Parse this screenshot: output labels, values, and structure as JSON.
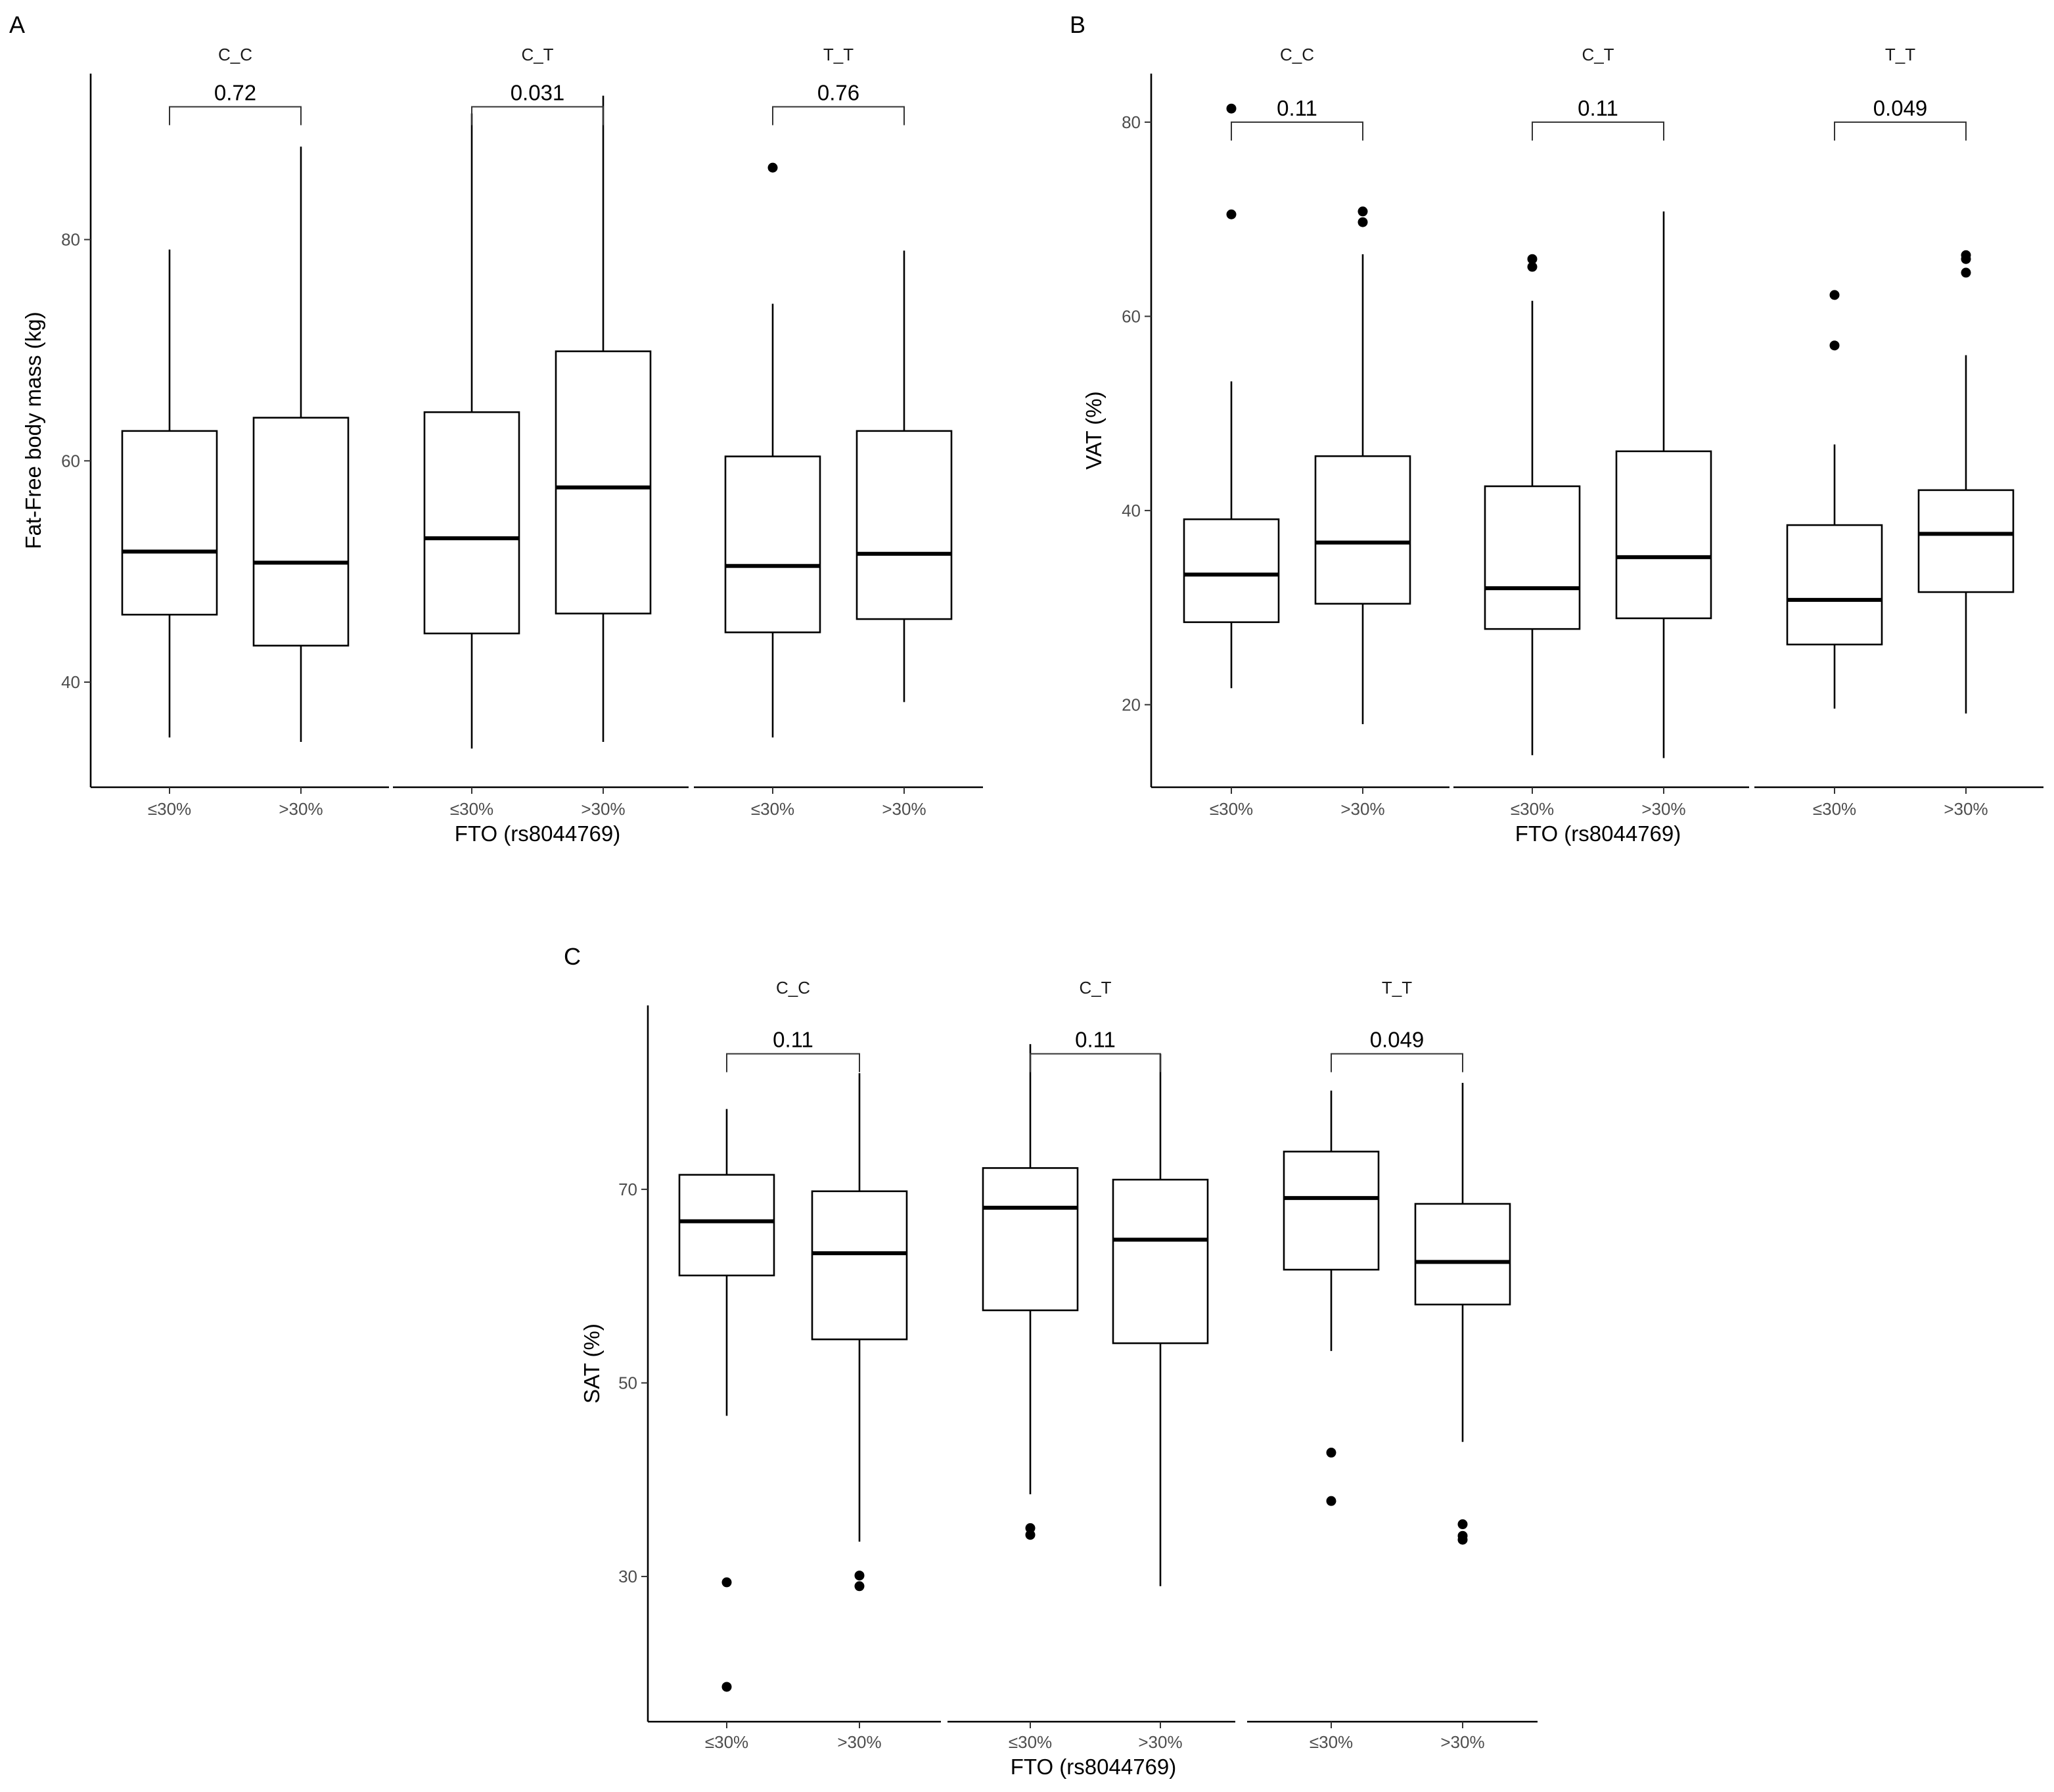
{
  "chart_data": [
    {
      "type": "boxplot",
      "panel": "A",
      "ylabel": "Fat-Free body mass (kg)",
      "xlabel": "FTO (rs8044769)",
      "ylim": [
        30.5,
        95
      ],
      "yticks": [
        40,
        60,
        80
      ],
      "categories": [
        "≤30%",
        ">30%"
      ],
      "facets": [
        {
          "label": "C_C",
          "pvalue": "0.72",
          "bracket_y": 92,
          "boxes": [
            {
              "category": "≤30%",
              "whisker_low": 35,
              "q1": 46.1,
              "median": 51.8,
              "q3": 62.7,
              "whisker_high": 79.1,
              "outliers": []
            },
            {
              "category": ">30%",
              "whisker_low": 34.6,
              "q1": 43.3,
              "median": 50.8,
              "q3": 63.9,
              "whisker_high": 88.4,
              "outliers": []
            }
          ]
        },
        {
          "label": "C_T",
          "pvalue": "0.031",
          "bracket_y": 92,
          "boxes": [
            {
              "category": "≤30%",
              "whisker_low": 34,
              "q1": 44.4,
              "median": 53,
              "q3": 64.4,
              "whisker_high": 91.4,
              "outliers": []
            },
            {
              "category": ">30%",
              "whisker_low": 34.6,
              "q1": 46.2,
              "median": 57.6,
              "q3": 69.9,
              "whisker_high": 93,
              "outliers": []
            }
          ]
        },
        {
          "label": "T_T",
          "pvalue": "0.76",
          "bracket_y": 92,
          "boxes": [
            {
              "category": "≤30%",
              "whisker_low": 35,
              "q1": 44.5,
              "median": 50.5,
              "q3": 60.4,
              "whisker_high": 74.2,
              "outliers": [
                86.5
              ]
            },
            {
              "category": ">30%",
              "whisker_low": 38.2,
              "q1": 45.7,
              "median": 51.6,
              "q3": 62.7,
              "whisker_high": 79,
              "outliers": []
            }
          ]
        }
      ]
    },
    {
      "type": "boxplot",
      "panel": "B",
      "ylabel": "VAT (%)",
      "xlabel": "FTO (rs8044769)",
      "ylim": [
        11.5,
        85
      ],
      "yticks": [
        20,
        40,
        60,
        80
      ],
      "categories": [
        "≤30%",
        ">30%"
      ],
      "facets": [
        {
          "label": "C_C",
          "pvalue": "0.11",
          "bracket_y": 80,
          "boxes": [
            {
              "category": "≤30%",
              "whisker_low": 21.7,
              "q1": 28.5,
              "median": 33.4,
              "q3": 39.1,
              "whisker_high": 53.3,
              "outliers": [
                70.5,
                81.4
              ]
            },
            {
              "category": ">30%",
              "whisker_low": 18,
              "q1": 30.4,
              "median": 36.7,
              "q3": 45.6,
              "whisker_high": 66.4,
              "outliers": [
                69.7,
                70.8
              ]
            }
          ]
        },
        {
          "label": "C_T",
          "pvalue": "0.11",
          "bracket_y": 80,
          "boxes": [
            {
              "category": "≤30%",
              "whisker_low": 14.8,
              "q1": 27.8,
              "median": 32,
              "q3": 42.5,
              "whisker_high": 61.6,
              "outliers": [
                65.1,
                65.9
              ]
            },
            {
              "category": ">30%",
              "whisker_low": 14.5,
              "q1": 28.9,
              "median": 35.2,
              "q3": 46.1,
              "whisker_high": 70.8,
              "outliers": []
            }
          ]
        },
        {
          "label": "T_T",
          "pvalue": "0.049",
          "bracket_y": 80,
          "boxes": [
            {
              "category": "≤30%",
              "whisker_low": 19.6,
              "q1": 26.2,
              "median": 30.8,
              "q3": 38.5,
              "whisker_high": 46.8,
              "outliers": [
                57,
                62.2
              ]
            },
            {
              "category": ">30%",
              "whisker_low": 19.1,
              "q1": 31.6,
              "median": 37.6,
              "q3": 42.1,
              "whisker_high": 56,
              "outliers": [
                64.5,
                65.9,
                66.3
              ]
            }
          ]
        }
      ]
    },
    {
      "type": "boxplot",
      "panel": "C",
      "ylabel": "SAT (%)",
      "xlabel": "FTO (rs8044769)",
      "ylim": [
        15,
        89
      ],
      "yticks": [
        30,
        50,
        70
      ],
      "categories": [
        "≤30%",
        ">30%"
      ],
      "facets": [
        {
          "label": "C_C",
          "pvalue": "0.11",
          "bracket_y": 84,
          "boxes": [
            {
              "category": "≤30%",
              "whisker_low": 46.6,
              "q1": 61.1,
              "median": 66.7,
              "q3": 71.5,
              "whisker_high": 78.3,
              "outliers": [
                29.4,
                18.6
              ]
            },
            {
              "category": ">30%",
              "whisker_low": 33.6,
              "q1": 54.5,
              "median": 63.4,
              "q3": 69.8,
              "whisker_high": 82,
              "outliers": [
                30.1,
                29
              ]
            }
          ]
        },
        {
          "label": "C_T",
          "pvalue": "0.11",
          "bracket_y": 84,
          "boxes": [
            {
              "category": "≤30%",
              "whisker_low": 38.5,
              "q1": 57.5,
              "median": 68.1,
              "q3": 72.2,
              "whisker_high": 85,
              "outliers": [
                35,
                34.3
              ]
            },
            {
              "category": ">30%",
              "whisker_low": 29,
              "q1": 54.1,
              "median": 64.8,
              "q3": 71,
              "whisker_high": 84,
              "outliers": []
            }
          ]
        },
        {
          "label": "T_T",
          "pvalue": "0.049",
          "bracket_y": 84,
          "boxes": [
            {
              "category": "≤30%",
              "whisker_low": 53.3,
              "q1": 61.7,
              "median": 69.1,
              "q3": 73.9,
              "whisker_high": 80.2,
              "outliers": [
                42.8,
                37.8
              ]
            },
            {
              "category": ">30%",
              "whisker_low": 43.9,
              "q1": 58.1,
              "median": 62.5,
              "q3": 68.5,
              "whisker_high": 81,
              "outliers": [
                35.4,
                34.2,
                33.8
              ]
            }
          ]
        }
      ]
    }
  ]
}
